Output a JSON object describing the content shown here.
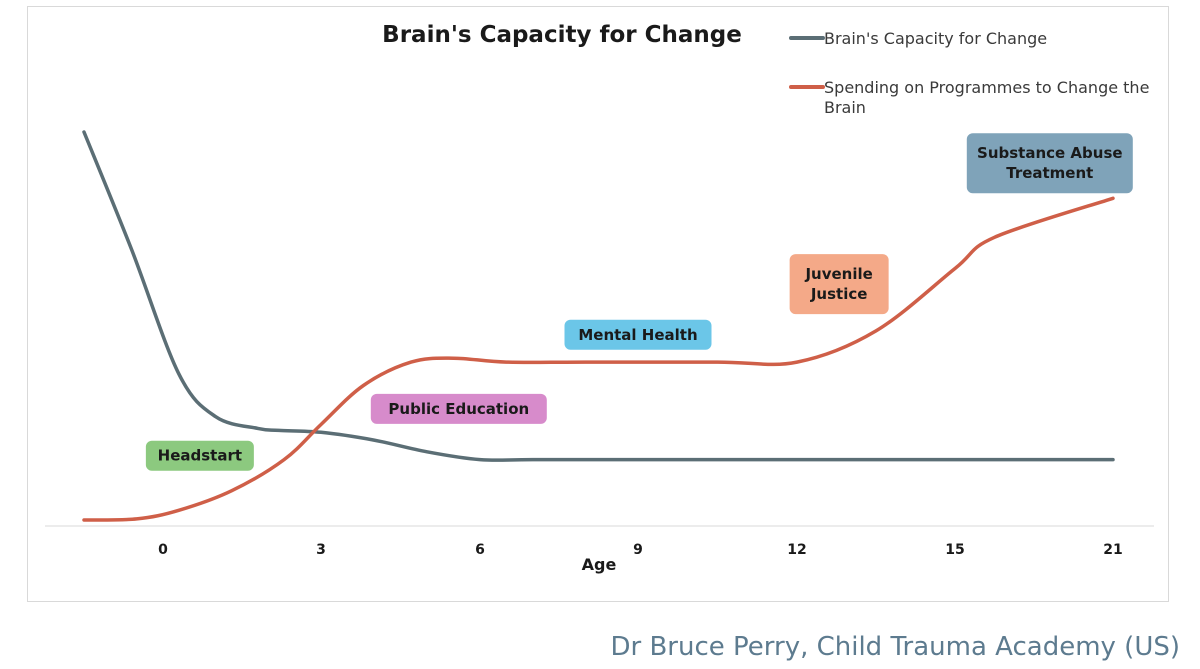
{
  "chart_data": {
    "type": "line",
    "title": "Brain's Capacity for Change",
    "xlabel": "Age",
    "ylabel": "",
    "x_ticks": [
      "0",
      "3",
      "6",
      "9",
      "12",
      "15",
      "21"
    ],
    "ylim": [
      0,
      100
    ],
    "grid": false,
    "legend_position": "top-right",
    "series": [
      {
        "name": "Brain's Capacity for Change",
        "color": "#5b6e75",
        "x": [
          -1.5,
          -0.6,
          0.3,
          1.0,
          1.8,
          2.2,
          3.0,
          4.0,
          5.0,
          6.0,
          7.0,
          9.0,
          12.0,
          15.0,
          21.0
        ],
        "y": [
          100,
          70,
          38,
          27,
          24,
          23.5,
          23,
          21,
          18,
          16,
          16,
          16,
          16,
          16,
          16
        ]
      },
      {
        "name": "Spending on Programmes to Change the Brain",
        "color": "#cf5f48",
        "x": [
          -1.5,
          -0.5,
          0.3,
          1.3,
          2.3,
          3.0,
          3.8,
          4.7,
          5.5,
          6.5,
          8.0,
          10.5,
          12.0,
          13.5,
          15.0,
          16.5,
          21.0
        ],
        "y": [
          0.5,
          0.8,
          3,
          8,
          16,
          25,
          35,
          41,
          42,
          41,
          41,
          41,
          41,
          49,
          65,
          73,
          83
        ]
      }
    ],
    "annotations": [
      {
        "text": "Headstart",
        "color": "#8cc97f",
        "x": 0.7,
        "y": 17
      },
      {
        "text": "Public Education",
        "color": "#d78bcb",
        "x": 5.6,
        "y": 29
      },
      {
        "text": "Mental Health",
        "color": "#6bc6e8",
        "x": 9.0,
        "y": 48
      },
      {
        "text": "Juvenile\nJustice",
        "color": "#f4a988",
        "x": 12.8,
        "y": 61
      },
      {
        "text": "Substance Abuse\nTreatment",
        "color": "#7fa3b9",
        "x": 18.6,
        "y": 92
      }
    ]
  },
  "credit": "Dr Bruce Perry, Child Trauma Academy (US)"
}
